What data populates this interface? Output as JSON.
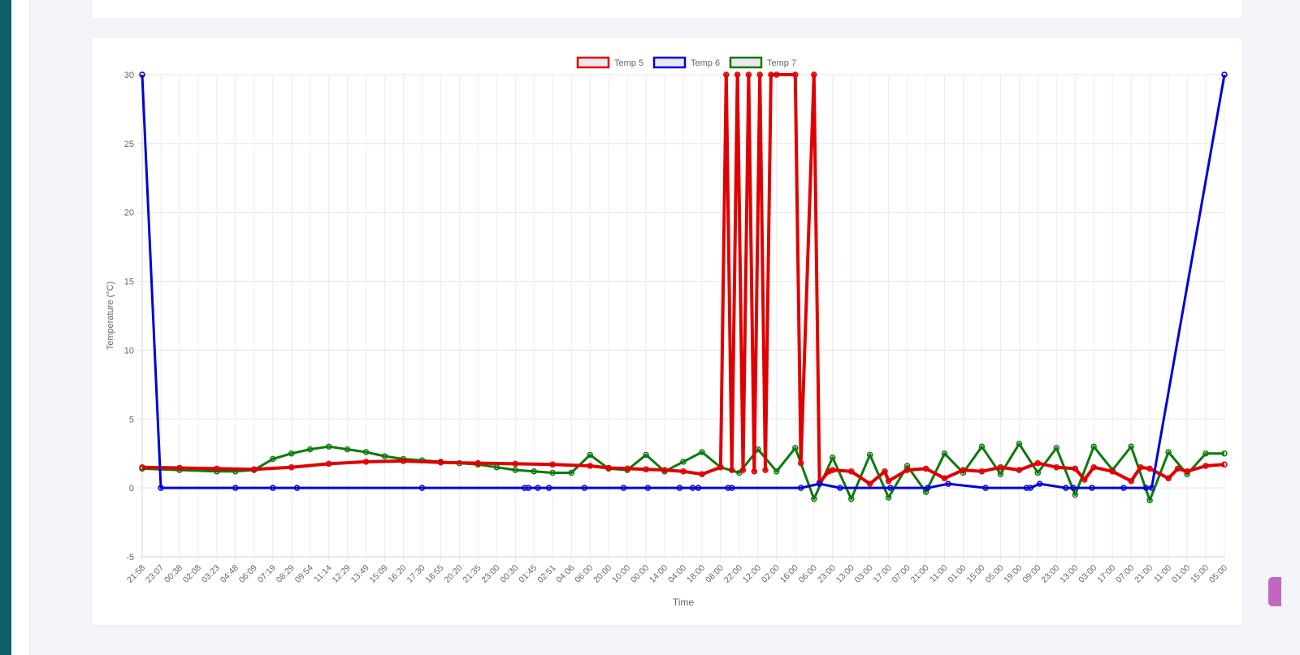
{
  "chart_data": {
    "type": "line",
    "title": "",
    "xlabel": "Time",
    "ylabel": "Temperature (°C)",
    "ylim": [
      -5,
      30
    ],
    "y_ticks": [
      30,
      25,
      20,
      15,
      10,
      5,
      0,
      -5
    ],
    "grid": true,
    "legend_position": "top-center",
    "categories": [
      "21:58",
      "23:07",
      "00:38",
      "02:08",
      "03:23",
      "04:48",
      "06:09",
      "07:19",
      "08:29",
      "09:54",
      "11:14",
      "12:29",
      "13:49",
      "15:09",
      "16:20",
      "17:30",
      "18:55",
      "20:20",
      "21:35",
      "23:00",
      "00:30",
      "01:45",
      "02:51",
      "04:06",
      "06:00",
      "20:00",
      "10:00",
      "00:00",
      "14:00",
      "04:00",
      "18:00",
      "08:00",
      "22:00",
      "12:00",
      "02:00",
      "16:00",
      "06:00",
      "23:00",
      "13:00",
      "03:00",
      "17:00",
      "07:00",
      "21:00",
      "11:00",
      "01:00",
      "15:00",
      "05:00",
      "19:00",
      "09:00",
      "23:00",
      "13:00",
      "03:00",
      "17:00",
      "07:00",
      "21:00",
      "11:00",
      "01:00",
      "15:00",
      "05:00"
    ],
    "series": [
      {
        "name": "Temp 5",
        "color": "#e00000",
        "x": [
          0,
          2,
          4,
          6,
          8,
          10,
          12,
          14,
          16,
          18,
          20,
          22,
          24,
          25,
          26,
          27,
          28,
          29,
          30,
          31,
          31.3,
          31.6,
          31.9,
          32.2,
          32.5,
          32.8,
          33.1,
          33.4,
          33.7,
          34,
          35,
          35.3,
          36,
          36.3,
          36.8,
          37,
          38,
          39,
          39.8,
          40,
          41,
          42,
          43,
          44,
          45,
          46,
          47,
          48,
          49,
          50,
          50.5,
          51,
          52,
          53,
          53.5,
          54,
          55,
          55.5,
          56,
          57,
          58
        ],
        "y": [
          1.5,
          1.45,
          1.4,
          1.35,
          1.5,
          1.75,
          1.9,
          1.95,
          1.85,
          1.8,
          1.75,
          1.7,
          1.6,
          1.45,
          1.4,
          1.35,
          1.3,
          1.2,
          1.0,
          1.5,
          30,
          1.3,
          30,
          1.3,
          30,
          1.2,
          30,
          1.3,
          30,
          30,
          30,
          1.8,
          30,
          0.4,
          1.2,
          1.3,
          1.2,
          0.3,
          1.2,
          0.5,
          1.3,
          1.4,
          0.7,
          1.3,
          1.2,
          1.5,
          1.3,
          1.8,
          1.5,
          1.4,
          0.6,
          1.5,
          1.2,
          0.5,
          1.5,
          1.4,
          0.7,
          1.4,
          1.2,
          1.6,
          1.7
        ]
      },
      {
        "name": "Temp 6",
        "color": "#0000d8",
        "x": [
          0,
          1,
          5,
          7,
          8.3,
          15,
          20.5,
          20.7,
          21.2,
          21.8,
          23.7,
          25.8,
          27.1,
          28.8,
          29.5,
          29.8,
          31.4,
          31.6,
          35.3,
          36.3,
          37.4,
          40.1,
          42.1,
          43.2,
          45.2,
          47.4,
          47.6,
          48.1,
          49.5,
          49.9,
          50.9,
          52.6,
          53.8,
          54.1,
          58
        ],
        "y": [
          30,
          0,
          0,
          0,
          0,
          0,
          0,
          0,
          0,
          0,
          0,
          0,
          0,
          0,
          0,
          0,
          0,
          0,
          0,
          0.3,
          0,
          0,
          0,
          0.3,
          0,
          0,
          0,
          0.3,
          0,
          0,
          0,
          0,
          0,
          0,
          30
        ]
      },
      {
        "name": "Temp 7",
        "color": "#0c7a0c",
        "x": [
          0,
          2,
          4,
          5,
          6,
          7,
          8,
          9,
          10,
          11,
          12,
          13,
          14,
          15,
          16,
          17,
          18,
          19,
          20,
          21,
          22,
          23,
          24,
          25,
          26,
          27,
          28,
          29,
          30,
          31,
          32,
          33,
          34,
          35,
          36,
          37,
          38,
          39,
          40,
          41,
          42,
          43,
          44,
          45,
          46,
          47,
          48,
          49,
          50,
          51,
          52,
          53,
          54,
          55,
          56,
          57,
          58
        ],
        "y": [
          1.4,
          1.3,
          1.2,
          1.2,
          1.3,
          2.1,
          2.5,
          2.8,
          3.0,
          2.8,
          2.6,
          2.3,
          2.1,
          2.0,
          1.9,
          1.8,
          1.7,
          1.5,
          1.3,
          1.2,
          1.1,
          1.1,
          2.4,
          1.4,
          1.3,
          2.4,
          1.2,
          1.9,
          2.6,
          1.5,
          1.1,
          2.8,
          1.2,
          2.9,
          -0.8,
          2.2,
          -0.8,
          2.4,
          -0.7,
          1.6,
          -0.3,
          2.5,
          1.1,
          3.0,
          1.0,
          3.2,
          1.1,
          2.9,
          -0.5,
          3.0,
          1.3,
          3.0,
          -0.9,
          2.6,
          1.0,
          2.5,
          2.5
        ]
      }
    ]
  }
}
